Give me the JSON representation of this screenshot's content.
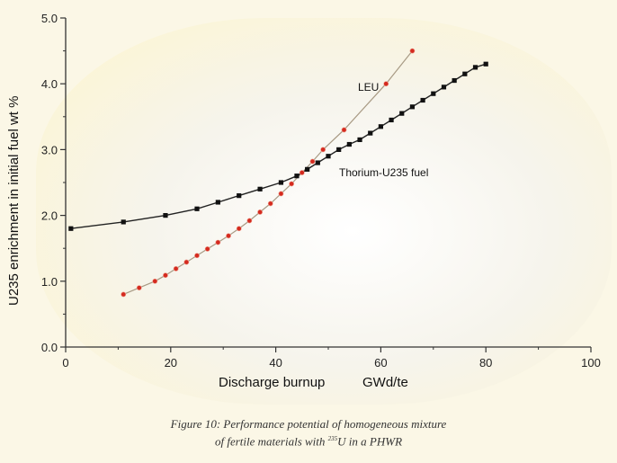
{
  "chart_data": {
    "type": "line",
    "xlabel": "Discharge burnup",
    "xlabel_unit": "GWd/te",
    "ylabel": "U235 enrichment in initial fuel   wt %",
    "xlim": [
      0,
      100
    ],
    "ylim": [
      0.0,
      5.0
    ],
    "x_ticks": [
      "0",
      "20",
      "40",
      "60",
      "80",
      "100"
    ],
    "y_ticks": [
      "0.0",
      "1.0",
      "2.0",
      "3.0",
      "4.0",
      "5.0"
    ],
    "grid": false,
    "series": [
      {
        "name": "LEU",
        "color": "#d42a1f",
        "line_color": "#a89a84",
        "marker": "circle",
        "x": [
          11,
          14,
          17,
          19,
          21,
          23,
          25,
          27,
          29,
          31,
          33,
          35,
          37,
          39,
          41,
          43,
          45,
          47,
          49,
          53,
          61,
          66
        ],
        "y": [
          0.8,
          0.9,
          1.0,
          1.09,
          1.19,
          1.29,
          1.39,
          1.49,
          1.59,
          1.69,
          1.8,
          1.92,
          2.05,
          2.18,
          2.33,
          2.48,
          2.65,
          2.82,
          3.0,
          3.3,
          4.0,
          4.5
        ]
      },
      {
        "name": "Thorium-U235 fuel",
        "color": "#111111",
        "line_color": "#222222",
        "marker": "square",
        "x": [
          1,
          11,
          19,
          25,
          29,
          33,
          37,
          41,
          44,
          46,
          48,
          50,
          52,
          54,
          56,
          58,
          60,
          62,
          64,
          66,
          68,
          70,
          72,
          74,
          76,
          78,
          80
        ],
        "y": [
          1.8,
          1.9,
          2.0,
          2.1,
          2.2,
          2.3,
          2.4,
          2.5,
          2.6,
          2.7,
          2.8,
          2.9,
          3.0,
          3.08,
          3.15,
          3.25,
          3.35,
          3.45,
          3.55,
          3.65,
          3.75,
          3.85,
          3.95,
          4.05,
          4.15,
          4.25,
          4.3
        ]
      }
    ]
  },
  "caption": {
    "line1": "Figure 10: Performance potential of homogeneous mixture",
    "line2_prefix": "of fertile materials  with ",
    "line2_sup": "235",
    "line2_suffix": "U in a PHWR"
  },
  "colors": {
    "background": "#fbf7e6",
    "axis": "#333333"
  }
}
